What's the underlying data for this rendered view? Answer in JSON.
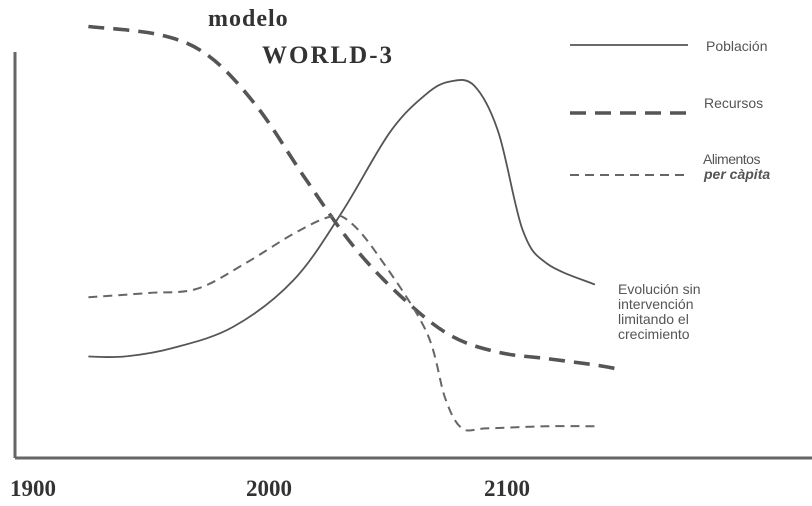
{
  "chart_data": {
    "type": "line",
    "title_lines": [
      "modelo",
      "WORLD-3"
    ],
    "x_tick_labels": [
      "1900",
      "2000",
      "2100"
    ],
    "xlim": [
      1870,
      2200
    ],
    "ylim": [
      0,
      1
    ],
    "grid": false,
    "legend_position": "top-right",
    "series": [
      {
        "name": "Población",
        "style": "solid",
        "x": [
          1900,
          1915,
          1935,
          1960,
          1985,
          2005,
          2025,
          2040,
          2050,
          2060,
          2070,
          2080,
          2090,
          2110
        ],
        "y": [
          0.24,
          0.24,
          0.26,
          0.31,
          0.42,
          0.58,
          0.77,
          0.86,
          0.89,
          0.88,
          0.77,
          0.54,
          0.46,
          0.41
        ]
      },
      {
        "name": "Recursos",
        "style": "heavy-dash",
        "x": [
          1900,
          1930,
          1950,
          1970,
          1990,
          2010,
          2030,
          2050,
          2070,
          2090,
          2110,
          2120
        ],
        "y": [
          1.02,
          1.0,
          0.95,
          0.83,
          0.66,
          0.5,
          0.38,
          0.29,
          0.25,
          0.235,
          0.22,
          0.21
        ]
      },
      {
        "name": "Alimentos per càpita",
        "style": "light-dash",
        "x": [
          1900,
          1925,
          1945,
          1965,
          1985,
          2000,
          2008,
          2020,
          2040,
          2048,
          2055,
          2065,
          2090,
          2110
        ],
        "y": [
          0.38,
          0.39,
          0.4,
          0.46,
          0.53,
          0.57,
          0.56,
          0.48,
          0.3,
          0.14,
          0.07,
          0.07,
          0.075,
          0.075
        ]
      }
    ],
    "annotation": [
      "Evolución sin",
      "intervención",
      "limitando el",
      "crecimiento"
    ]
  },
  "legend": {
    "poblacion": "Población",
    "recursos": "Recursos",
    "alimentos_line1": "Alimentos",
    "alimentos_line2": "per càpita"
  },
  "colors": {
    "axis": "#666666",
    "poblacion": "#555555",
    "recursos": "#555555",
    "alimentos": "#666666"
  }
}
